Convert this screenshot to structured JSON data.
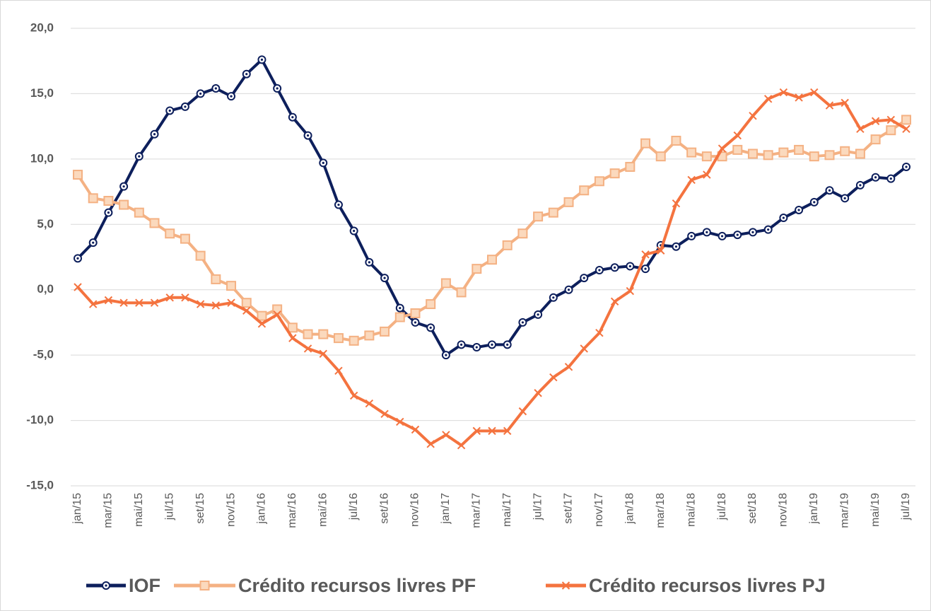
{
  "chart_data": {
    "type": "line",
    "categories": [
      "jan/15",
      null,
      "mar/15",
      null,
      "mai/15",
      null,
      "jul/15",
      null,
      "set/15",
      null,
      "nov/15",
      null,
      "jan/16",
      null,
      "mar/16",
      null,
      "mai/16",
      null,
      "jul/16",
      null,
      "set/16",
      null,
      "nov/16",
      null,
      "jan/17",
      null,
      "mar/17",
      null,
      "mai/17",
      null,
      "jul/17",
      null,
      "set/17",
      null,
      "nov/17",
      null,
      "jan/18",
      null,
      "mar/18",
      null,
      "mai/18",
      null,
      "jul/18",
      null,
      "set/18",
      null,
      "nov/18",
      null,
      "jan/19",
      null,
      "mar/19",
      null,
      "mai/19",
      null,
      "jul/19"
    ],
    "series": [
      {
        "name": "IOF",
        "color": "#0d1f5c",
        "marker": "circle",
        "values": [
          2.4,
          3.6,
          5.9,
          7.9,
          10.2,
          11.9,
          13.7,
          14.0,
          15.0,
          15.4,
          14.8,
          16.5,
          17.6,
          15.4,
          13.2,
          11.8,
          9.7,
          6.5,
          4.5,
          2.1,
          0.9,
          -1.4,
          -2.5,
          -2.9,
          -5.0,
          -4.2,
          -4.4,
          -4.2,
          -4.2,
          -2.5,
          -1.9,
          -0.6,
          0.0,
          0.9,
          1.5,
          1.7,
          1.8,
          1.6,
          3.4,
          3.3,
          4.1,
          4.4,
          4.1,
          4.2,
          4.4,
          4.6,
          5.5,
          6.1,
          6.7,
          7.6,
          7.0,
          8.0,
          8.6,
          8.5,
          9.4
        ]
      },
      {
        "name": "Crédito recursos livres PF",
        "color": "#f4b183",
        "marker": "square",
        "values": [
          8.8,
          7.0,
          6.8,
          6.5,
          5.9,
          5.1,
          4.3,
          3.9,
          2.6,
          0.8,
          0.3,
          -1.0,
          -2.0,
          -1.5,
          -2.9,
          -3.4,
          -3.4,
          -3.7,
          -3.9,
          -3.5,
          -3.2,
          -2.1,
          -1.8,
          -1.1,
          0.5,
          -0.2,
          1.6,
          2.3,
          3.4,
          4.3,
          5.6,
          5.9,
          6.7,
          7.6,
          8.3,
          8.9,
          9.4,
          11.2,
          10.2,
          11.4,
          10.5,
          10.2,
          10.2,
          10.7,
          10.4,
          10.3,
          10.5,
          10.7,
          10.2,
          10.3,
          10.6,
          10.4,
          11.5,
          12.2,
          13.0
        ]
      },
      {
        "name": "Crédito recursos livres PJ",
        "color": "#f4733f",
        "marker": "x",
        "values": [
          0.2,
          -1.1,
          -0.8,
          -1.0,
          -1.0,
          -1.0,
          -0.6,
          -0.6,
          -1.1,
          -1.2,
          -1.0,
          -1.6,
          -2.6,
          -1.9,
          -3.7,
          -4.5,
          -4.9,
          -6.2,
          -8.1,
          -8.7,
          -9.5,
          -10.1,
          -10.7,
          -11.8,
          -11.1,
          -11.9,
          -10.8,
          -10.8,
          -10.8,
          -9.3,
          -7.9,
          -6.7,
          -5.9,
          -4.5,
          -3.3,
          -0.9,
          -0.1,
          2.7,
          3.0,
          6.6,
          8.4,
          8.8,
          10.8,
          11.8,
          13.3,
          14.6,
          15.1,
          14.7,
          15.1,
          14.1,
          14.3,
          12.3,
          12.9,
          13.0,
          12.3
        ]
      }
    ],
    "ylim": [
      -15,
      20
    ],
    "yticks": [
      {
        "value": -15,
        "label": "-15,0"
      },
      {
        "value": -10,
        "label": "-10,0"
      },
      {
        "value": -5,
        "label": "-5,0"
      },
      {
        "value": 0,
        "label": "0,0"
      },
      {
        "value": 5,
        "label": "5,0"
      },
      {
        "value": 10,
        "label": "10,0"
      },
      {
        "value": 15,
        "label": "15,0"
      },
      {
        "value": 20,
        "label": "20,0"
      }
    ],
    "grid": true,
    "legend": "bottom"
  }
}
